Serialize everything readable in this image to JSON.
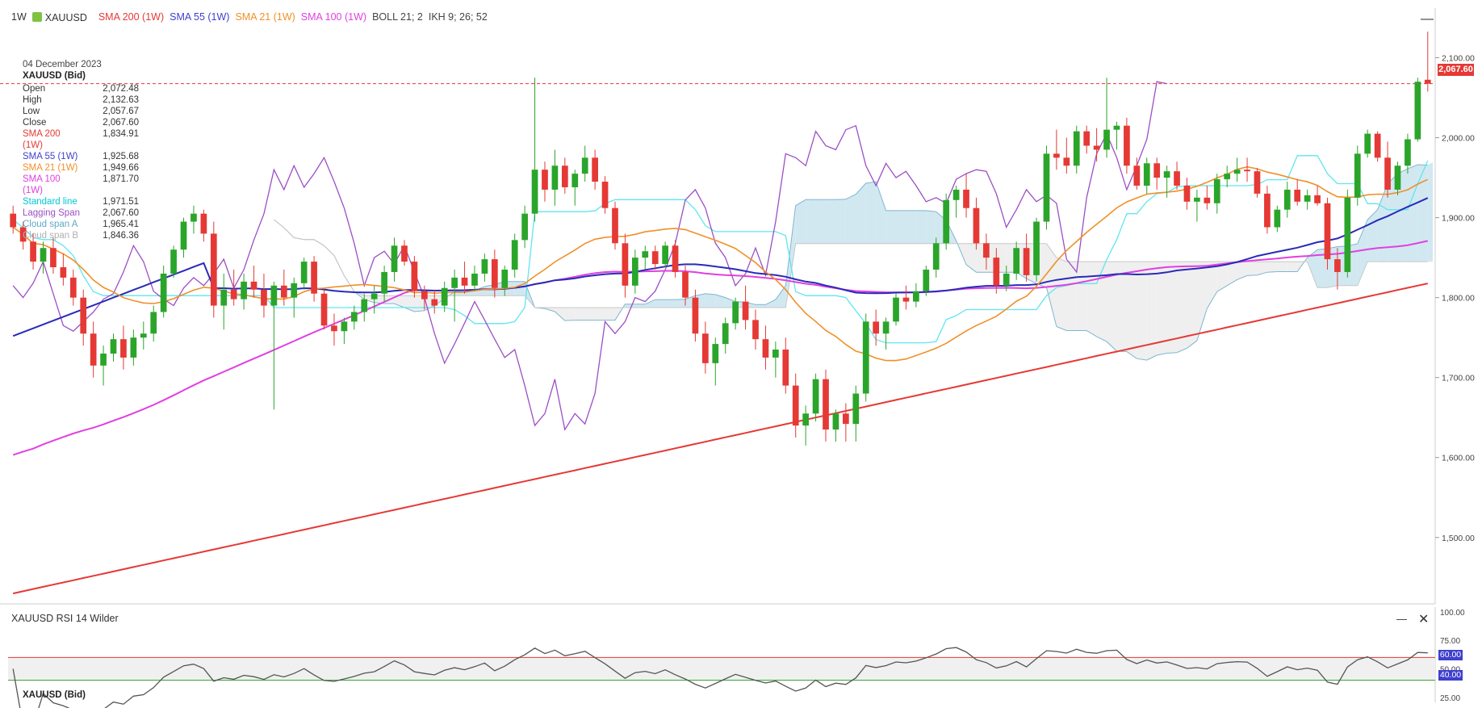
{
  "header": {
    "timeframe": "1W",
    "symbol": "XAUUSD",
    "indicators": [
      {
        "label": "SMA 200 (1W)",
        "color": "#e53935"
      },
      {
        "label": "SMA 55 (1W)",
        "color": "#3f3fcf"
      },
      {
        "label": "SMA 21 (1W)",
        "color": "#f0902a"
      },
      {
        "label": "SMA 100 (1W)",
        "color": "#e040e0"
      },
      {
        "label": "BOLL 21; 2",
        "color": "#444444"
      },
      {
        "label": "IKH 9; 26; 52",
        "color": "#444444"
      }
    ]
  },
  "info_panel": {
    "date": "04 December 2023",
    "instrument": "XAUUSD (Bid)",
    "rows": [
      {
        "key": "Open",
        "value": "2,072.48",
        "color": "#333333"
      },
      {
        "key": "High",
        "value": "2,132.63",
        "color": "#333333"
      },
      {
        "key": "Low",
        "value": "2,057.67",
        "color": "#333333"
      },
      {
        "key": "Close",
        "value": "2,067.60",
        "color": "#333333"
      },
      {
        "key": "SMA 200 (1W)",
        "value": "1,834.91",
        "color": "#e53935"
      },
      {
        "key": "SMA 55 (1W)",
        "value": "1,925.68",
        "color": "#3f3fcf"
      },
      {
        "key": "SMA 21 (1W)",
        "value": "1,949.66",
        "color": "#f0902a"
      },
      {
        "key": "SMA 100 (1W)",
        "value": "1,871.70",
        "color": "#e040e0"
      },
      {
        "key": "Standard line",
        "value": "1,971.51",
        "color": "#00c8d8"
      },
      {
        "key": "Lagging Span",
        "value": "2,067.60",
        "color": "#9c4fc4"
      },
      {
        "key": "Cloud span A",
        "value": "1,965.41",
        "color": "#5fa8c8"
      },
      {
        "key": "Cloud span B",
        "value": "1,846.36",
        "color": "#b0b0b0"
      }
    ]
  },
  "price_tag": "2,067.60",
  "rsi_panel": {
    "title": "XAUUSD RSI 14 Wilder",
    "footer": "XAUUSD (Bid)",
    "upper_tag": "60.00",
    "lower_tag": "40.00"
  },
  "chart_data": {
    "type": "candlestick",
    "x_unit": "weekly candles",
    "price_axis": {
      "ticks": [
        "1,500.00",
        "1,600.00",
        "1,700.00",
        "1,800.00",
        "1,900.00",
        "2,000.00",
        "2,100.00"
      ],
      "ylim": [
        1420,
        2150
      ]
    },
    "last_close_line": 2067.6,
    "candles": [
      [
        1905,
        1915,
        1880,
        1888
      ],
      [
        1888,
        1895,
        1860,
        1870
      ],
      [
        1870,
        1880,
        1835,
        1845
      ],
      [
        1845,
        1870,
        1830,
        1862
      ],
      [
        1862,
        1875,
        1830,
        1838
      ],
      [
        1838,
        1855,
        1815,
        1825
      ],
      [
        1825,
        1835,
        1790,
        1800
      ],
      [
        1800,
        1810,
        1740,
        1755
      ],
      [
        1755,
        1770,
        1700,
        1715
      ],
      [
        1715,
        1740,
        1690,
        1730
      ],
      [
        1730,
        1755,
        1720,
        1748
      ],
      [
        1748,
        1765,
        1710,
        1725
      ],
      [
        1725,
        1760,
        1715,
        1750
      ],
      [
        1750,
        1770,
        1735,
        1755
      ],
      [
        1755,
        1790,
        1745,
        1782
      ],
      [
        1782,
        1840,
        1775,
        1830
      ],
      [
        1830,
        1865,
        1825,
        1860
      ],
      [
        1860,
        1900,
        1850,
        1895
      ],
      [
        1895,
        1915,
        1880,
        1905
      ],
      [
        1905,
        1910,
        1870,
        1880
      ],
      [
        1880,
        1895,
        1775,
        1790
      ],
      [
        1790,
        1830,
        1760,
        1810
      ],
      [
        1810,
        1835,
        1790,
        1798
      ],
      [
        1798,
        1830,
        1785,
        1820
      ],
      [
        1820,
        1840,
        1800,
        1810
      ],
      [
        1810,
        1830,
        1775,
        1790
      ],
      [
        1790,
        1820,
        1660,
        1815
      ],
      [
        1815,
        1835,
        1790,
        1800
      ],
      [
        1800,
        1825,
        1775,
        1818
      ],
      [
        1818,
        1850,
        1810,
        1845
      ],
      [
        1845,
        1852,
        1795,
        1805
      ],
      [
        1805,
        1810,
        1760,
        1765
      ],
      [
        1765,
        1780,
        1740,
        1758
      ],
      [
        1758,
        1775,
        1742,
        1770
      ],
      [
        1770,
        1790,
        1760,
        1782
      ],
      [
        1782,
        1805,
        1770,
        1798
      ],
      [
        1798,
        1815,
        1780,
        1805
      ],
      [
        1805,
        1840,
        1795,
        1832
      ],
      [
        1832,
        1875,
        1820,
        1865
      ],
      [
        1865,
        1872,
        1840,
        1845
      ],
      [
        1845,
        1852,
        1800,
        1808
      ],
      [
        1808,
        1815,
        1785,
        1798
      ],
      [
        1798,
        1810,
        1780,
        1790
      ],
      [
        1790,
        1820,
        1782,
        1812
      ],
      [
        1812,
        1835,
        1770,
        1825
      ],
      [
        1825,
        1845,
        1805,
        1815
      ],
      [
        1815,
        1840,
        1808,
        1830
      ],
      [
        1830,
        1855,
        1820,
        1848
      ],
      [
        1848,
        1860,
        1800,
        1812
      ],
      [
        1812,
        1840,
        1802,
        1835
      ],
      [
        1835,
        1880,
        1825,
        1872
      ],
      [
        1872,
        1915,
        1862,
        1905
      ],
      [
        1905,
        2075,
        1895,
        1960
      ],
      [
        1960,
        1970,
        1920,
        1935
      ],
      [
        1935,
        1985,
        1915,
        1965
      ],
      [
        1965,
        1975,
        1930,
        1938
      ],
      [
        1938,
        1960,
        1915,
        1955
      ],
      [
        1955,
        1990,
        1945,
        1975
      ],
      [
        1975,
        1985,
        1935,
        1945
      ],
      [
        1945,
        1952,
        1905,
        1912
      ],
      [
        1912,
        1920,
        1860,
        1868
      ],
      [
        1868,
        1880,
        1800,
        1815
      ],
      [
        1815,
        1860,
        1805,
        1850
      ],
      [
        1850,
        1865,
        1835,
        1858
      ],
      [
        1858,
        1865,
        1835,
        1842
      ],
      [
        1842,
        1870,
        1838,
        1865
      ],
      [
        1865,
        1872,
        1825,
        1832
      ],
      [
        1832,
        1840,
        1790,
        1800
      ],
      [
        1800,
        1810,
        1745,
        1755
      ],
      [
        1755,
        1770,
        1705,
        1718
      ],
      [
        1718,
        1750,
        1690,
        1742
      ],
      [
        1742,
        1775,
        1730,
        1768
      ],
      [
        1768,
        1800,
        1760,
        1795
      ],
      [
        1795,
        1815,
        1760,
        1772
      ],
      [
        1772,
        1785,
        1735,
        1748
      ],
      [
        1748,
        1765,
        1710,
        1725
      ],
      [
        1725,
        1745,
        1700,
        1735
      ],
      [
        1735,
        1750,
        1680,
        1690
      ],
      [
        1690,
        1705,
        1625,
        1640
      ],
      [
        1640,
        1665,
        1615,
        1655
      ],
      [
        1655,
        1705,
        1645,
        1698
      ],
      [
        1698,
        1710,
        1620,
        1635
      ],
      [
        1635,
        1660,
        1620,
        1655
      ],
      [
        1655,
        1668,
        1620,
        1642
      ],
      [
        1642,
        1690,
        1620,
        1680
      ],
      [
        1680,
        1780,
        1670,
        1770
      ],
      [
        1770,
        1785,
        1740,
        1755
      ],
      [
        1755,
        1775,
        1735,
        1770
      ],
      [
        1770,
        1805,
        1765,
        1800
      ],
      [
        1800,
        1815,
        1785,
        1795
      ],
      [
        1795,
        1818,
        1788,
        1808
      ],
      [
        1808,
        1840,
        1802,
        1835
      ],
      [
        1835,
        1875,
        1825,
        1868
      ],
      [
        1868,
        1930,
        1860,
        1922
      ],
      [
        1922,
        1940,
        1900,
        1935
      ],
      [
        1935,
        1955,
        1900,
        1912
      ],
      [
        1912,
        1925,
        1860,
        1868
      ],
      [
        1868,
        1880,
        1835,
        1850
      ],
      [
        1850,
        1862,
        1805,
        1815
      ],
      [
        1815,
        1840,
        1808,
        1830
      ],
      [
        1830,
        1870,
        1822,
        1862
      ],
      [
        1862,
        1880,
        1820,
        1828
      ],
      [
        1828,
        1900,
        1820,
        1895
      ],
      [
        1895,
        1990,
        1885,
        1980
      ],
      [
        1980,
        2010,
        1960,
        1975
      ],
      [
        1975,
        2000,
        1955,
        1965
      ],
      [
        1965,
        2015,
        1955,
        2008
      ],
      [
        2008,
        2015,
        1980,
        1990
      ],
      [
        1990,
        2012,
        1970,
        1985
      ],
      [
        1985,
        2075,
        1975,
        2010
      ],
      [
        2010,
        2020,
        1985,
        2015
      ],
      [
        2015,
        2025,
        1955,
        1965
      ],
      [
        1965,
        1975,
        1935,
        1940
      ],
      [
        1940,
        1975,
        1930,
        1968
      ],
      [
        1968,
        1975,
        1935,
        1950
      ],
      [
        1950,
        1965,
        1925,
        1958
      ],
      [
        1958,
        1970,
        1935,
        1940
      ],
      [
        1940,
        1950,
        1910,
        1920
      ],
      [
        1920,
        1935,
        1895,
        1925
      ],
      [
        1925,
        1940,
        1910,
        1918
      ],
      [
        1918,
        1955,
        1905,
        1948
      ],
      [
        1948,
        1965,
        1938,
        1955
      ],
      [
        1955,
        1975,
        1945,
        1960
      ],
      [
        1960,
        1975,
        1945,
        1958
      ],
      [
        1958,
        1962,
        1925,
        1930
      ],
      [
        1930,
        1940,
        1880,
        1888
      ],
      [
        1888,
        1915,
        1882,
        1910
      ],
      [
        1910,
        1945,
        1900,
        1935
      ],
      [
        1935,
        1948,
        1915,
        1920
      ],
      [
        1920,
        1935,
        1910,
        1928
      ],
      [
        1928,
        1940,
        1915,
        1918
      ],
      [
        1918,
        1925,
        1835,
        1848
      ],
      [
        1848,
        1862,
        1810,
        1832
      ],
      [
        1832,
        1935,
        1825,
        1925
      ],
      [
        1925,
        1990,
        1915,
        1980
      ],
      [
        1980,
        2010,
        1975,
        2005
      ],
      [
        2005,
        2008,
        1970,
        1975
      ],
      [
        1975,
        1995,
        1925,
        1935
      ],
      [
        1935,
        1970,
        1928,
        1965
      ],
      [
        1965,
        2005,
        1955,
        1998
      ],
      [
        1998,
        2075,
        1995,
        2070
      ],
      [
        2072.48,
        2132.63,
        2057.67,
        2067.6
      ]
    ],
    "rsi": {
      "axis_ticks": [
        "100.00",
        "75.00",
        "50.00",
        "25.00"
      ],
      "ylim": [
        22,
        102
      ],
      "upper_band": 60,
      "lower_band": 40
    }
  },
  "colors": {
    "up": "#2aa52a",
    "down": "#e53935",
    "sma200": "#e53935",
    "sma55": "#2a2ab8",
    "sma21": "#f0902a",
    "sma100": "#e040e0",
    "standard_line": "#5fe6f0",
    "lagging_span": "#9c4fc4",
    "cloud_bull": "#cfe7f0",
    "cloud_bear": "#eeeeee",
    "rsi_line": "#555555"
  }
}
